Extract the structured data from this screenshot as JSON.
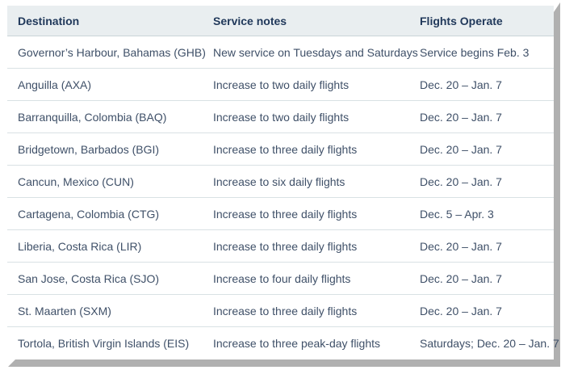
{
  "table": {
    "columns": [
      {
        "key": "destination",
        "label": "Destination"
      },
      {
        "key": "service_notes",
        "label": "Service notes"
      },
      {
        "key": "flights_operate",
        "label": "Flights Operate"
      }
    ],
    "rows": [
      {
        "destination": "Governor’s Harbour, Bahamas (GHB)",
        "service_notes": "New service on Tuesdays and Saturdays",
        "flights_operate": "Service begins Feb. 3"
      },
      {
        "destination": "Anguilla (AXA)",
        "service_notes": "Increase to two daily flights",
        "flights_operate": "Dec. 20 – Jan. 7"
      },
      {
        "destination": "Barranquilla, Colombia (BAQ)",
        "service_notes": "Increase to two daily flights",
        "flights_operate": "Dec. 20 – Jan. 7"
      },
      {
        "destination": "Bridgetown, Barbados (BGI)",
        "service_notes": "Increase to three daily flights",
        "flights_operate": "Dec. 20 – Jan. 7"
      },
      {
        "destination": "Cancun, Mexico (CUN)",
        "service_notes": "Increase to six daily flights",
        "flights_operate": "Dec. 20 – Jan. 7"
      },
      {
        "destination": "Cartagena, Colombia (CTG)",
        "service_notes": "Increase to three daily flights",
        "flights_operate": "Dec. 5 – Apr. 3"
      },
      {
        "destination": "Liberia, Costa Rica (LIR)",
        "service_notes": "Increase to three daily flights",
        "flights_operate": "Dec. 20 – Jan. 7"
      },
      {
        "destination": "San Jose, Costa Rica (SJO)",
        "service_notes": "Increase to four daily flights",
        "flights_operate": "Dec. 20 – Jan. 7"
      },
      {
        "destination": "St. Maarten (SXM)",
        "service_notes": "Increase to three daily flights",
        "flights_operate": "Dec. 20 – Jan. 7"
      },
      {
        "destination": "Tortola, British Virgin Islands (EIS)",
        "service_notes": "Increase to three peak-day flights",
        "flights_operate": "Saturdays; Dec. 20 – Jan. 7"
      }
    ]
  },
  "colors": {
    "header_bg": "#e9eef0",
    "header_text": "#21395b",
    "header_border": "#c9d4d8",
    "cell_text": "#3f5068",
    "row_border": "#d9e1e4",
    "shadow": "#b0b0b0"
  }
}
